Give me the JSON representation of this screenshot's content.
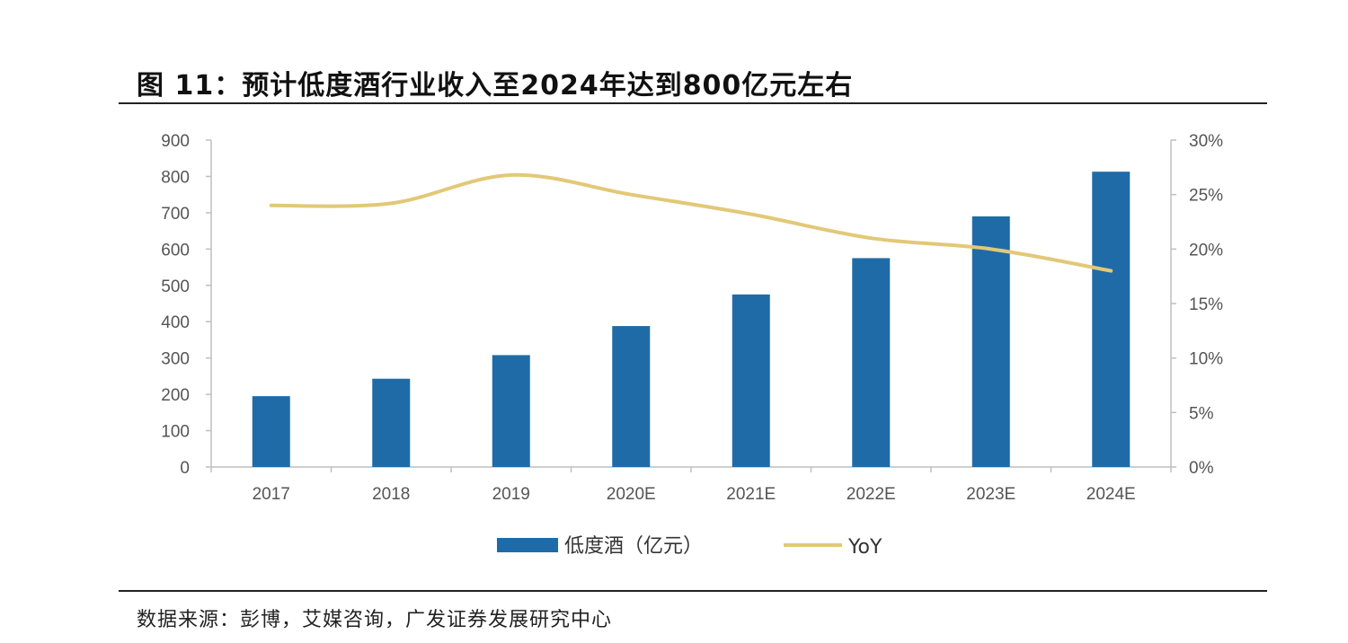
{
  "figure": {
    "title": "图 11：预计低度酒行业收入至2024年达到800亿元左右",
    "source": "数据来源：彭博，艾媒咨询，广发证券发展研究中心"
  },
  "chart_data": {
    "type": "bar",
    "categories": [
      "2017",
      "2018",
      "2019",
      "2020E",
      "2021E",
      "2022E",
      "2023E",
      "2024E"
    ],
    "series": [
      {
        "name": "低度酒（亿元）",
        "type": "bar",
        "axis": "left",
        "color": "#1F6BA8",
        "values": [
          195,
          243,
          308,
          388,
          475,
          575,
          690,
          813
        ]
      },
      {
        "name": "YoY",
        "type": "line",
        "axis": "right",
        "color": "#E2C878",
        "values": [
          0.24,
          0.242,
          0.268,
          0.25,
          0.232,
          0.21,
          0.2,
          0.18
        ]
      }
    ],
    "y_left": {
      "min": 0,
      "max": 900,
      "step": 100,
      "tick_labels": [
        "0",
        "100",
        "200",
        "300",
        "400",
        "500",
        "600",
        "700",
        "800",
        "900"
      ]
    },
    "y_right": {
      "min": 0,
      "max": 0.3,
      "step": 0.05,
      "tick_labels": [
        "0%",
        "5%",
        "10%",
        "15%",
        "20%",
        "25%",
        "30%"
      ]
    },
    "legend_position": "bottom-center",
    "grid": false
  }
}
